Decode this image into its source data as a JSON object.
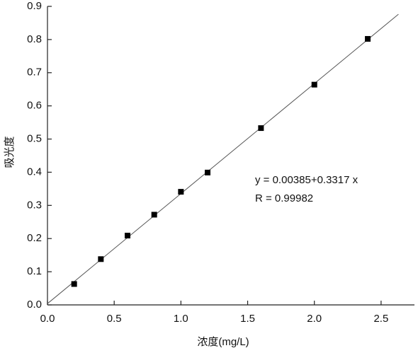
{
  "chart_data": {
    "type": "scatter",
    "x_label": "浓度(mg/L)",
    "y_label": "吸光度",
    "annotations": [
      "y = 0.00385+0.3317 x",
      "R = 0.99982"
    ],
    "series": [
      {
        "name": "吸光度",
        "color": "#000000",
        "x": [
          0.2,
          0.4,
          0.6,
          0.8,
          1.0,
          1.2,
          1.6,
          2.0,
          2.4
        ],
        "values": [
          0.063,
          0.138,
          0.209,
          0.272,
          0.341,
          0.399,
          0.533,
          0.664,
          0.802
        ]
      }
    ],
    "fit": {
      "intercept": 0.00385,
      "slope": 0.3317,
      "xrange": [
        0,
        2.63
      ],
      "color": "#555555"
    },
    "xlim": [
      0,
      2.75
    ],
    "ylim": [
      0,
      0.9
    ],
    "xticks": [
      {
        "value": 0,
        "label": "0.0"
      },
      0.5,
      {
        "value": 1,
        "label": "1.0"
      },
      1.5,
      {
        "value": 2,
        "label": "2.0"
      },
      2.5
    ],
    "yticks": [
      {
        "value": 0,
        "label": "0.0"
      },
      0.1,
      0.2,
      0.3,
      0.4,
      0.5,
      0.6,
      0.7,
      0.8,
      0.9
    ]
  }
}
